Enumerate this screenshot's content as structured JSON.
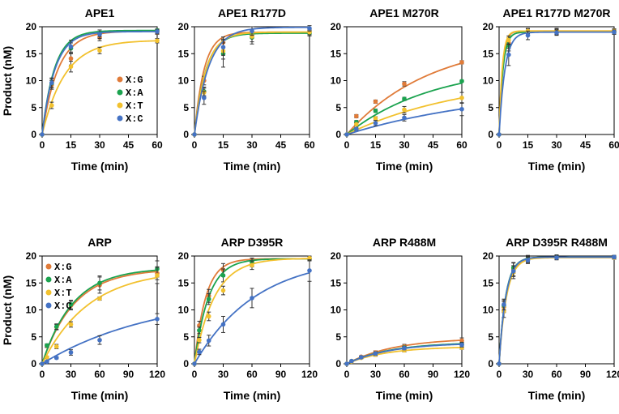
{
  "figure": {
    "y_axis_label": "Product (nM)",
    "colors": {
      "G": "#E07B39",
      "A": "#1BA34F",
      "T": "#F2C12E",
      "C": "#4472C4"
    }
  },
  "chart_data": [
    {
      "type": "line",
      "title": "APE1",
      "xlabel": "Time (min)",
      "ylabel": "Product (nM)",
      "xlim": [
        0,
        60
      ],
      "ylim": [
        0,
        20
      ],
      "xticks": [
        0,
        15,
        30,
        45,
        60
      ],
      "yticks": [
        0,
        5,
        10,
        15,
        20
      ],
      "legend": {
        "placement": "center-right",
        "entries": [
          "X:G",
          "X:A",
          "X:T",
          "X:C"
        ]
      },
      "series": [
        {
          "name": "X:G",
          "x": [
            0,
            5,
            15,
            30,
            60
          ],
          "y": [
            0,
            9.2,
            14.1,
            18.0,
            19.0
          ],
          "err": [
            0,
            0.8,
            1.2,
            0.6,
            0.4
          ],
          "fit": {
            "A": 19.2,
            "k": 0.12
          }
        },
        {
          "name": "X:A",
          "x": [
            0,
            5,
            15,
            30,
            60
          ],
          "y": [
            0,
            9.5,
            16.0,
            18.8,
            19.3
          ],
          "err": [
            0,
            0.8,
            1.0,
            0.6,
            0.3
          ],
          "fit": {
            "A": 19.3,
            "k": 0.155
          }
        },
        {
          "name": "X:T",
          "x": [
            0,
            5,
            15,
            30,
            60
          ],
          "y": [
            0,
            5.4,
            12.6,
            15.6,
            17.4
          ],
          "err": [
            0,
            0.6,
            1.0,
            0.6,
            0.4
          ],
          "fit": {
            "A": 17.5,
            "k": 0.085
          }
        },
        {
          "name": "X:C",
          "x": [
            0,
            5,
            15,
            30,
            60
          ],
          "y": [
            0,
            9.6,
            16.3,
            18.6,
            19.1
          ],
          "err": [
            0,
            0.9,
            1.2,
            0.8,
            0.4
          ],
          "fit": {
            "A": 19.1,
            "k": 0.15
          }
        }
      ]
    },
    {
      "type": "line",
      "title": "APE1 R177D",
      "xlabel": "",
      "ylabel": "",
      "xlim": [
        0,
        60
      ],
      "ylim": [
        0,
        20
      ],
      "xticks": [
        0,
        15,
        30,
        45,
        60
      ],
      "yticks": [
        0,
        5,
        10,
        15,
        20
      ],
      "series": [
        {
          "name": "X:G",
          "x": [
            0,
            5,
            15,
            30,
            60
          ],
          "y": [
            0,
            10.0,
            17.1,
            18.5,
            19.0
          ],
          "err": [
            0,
            0.8,
            1.0,
            0.6,
            0.4
          ],
          "fit": {
            "A": 19.0,
            "k": 0.2
          }
        },
        {
          "name": "X:A",
          "x": [
            0,
            5,
            15,
            30,
            60
          ],
          "y": [
            0,
            8.0,
            15.0,
            18.0,
            18.8
          ],
          "err": [
            0,
            0.8,
            2.5,
            1.2,
            0.5
          ],
          "fit": {
            "A": 18.8,
            "k": 0.17
          }
        },
        {
          "name": "X:T",
          "x": [
            0,
            5,
            15,
            30,
            60
          ],
          "y": [
            0,
            7.8,
            15.5,
            18.2,
            19.0
          ],
          "err": [
            0,
            0.8,
            1.5,
            1.0,
            0.5
          ],
          "fit": {
            "A": 19.0,
            "k": 0.165
          }
        },
        {
          "name": "X:C",
          "x": [
            0,
            5,
            15,
            30,
            60
          ],
          "y": [
            0,
            6.8,
            16.2,
            19.2,
            19.7
          ],
          "err": [
            0,
            1.2,
            1.5,
            0.8,
            0.5
          ],
          "fit": {
            "A": 19.9,
            "k": 0.135
          }
        }
      ]
    },
    {
      "type": "line",
      "title": "APE1 M270R",
      "xlabel": "Time (min)",
      "ylabel": "",
      "xlim": [
        0,
        60
      ],
      "ylim": [
        0,
        20
      ],
      "xticks": [
        0,
        15,
        30,
        45,
        60
      ],
      "yticks": [
        0,
        5,
        10,
        15,
        20
      ],
      "series": [
        {
          "name": "X:G",
          "x": [
            0,
            5,
            15,
            30,
            60
          ],
          "y": [
            0,
            3.4,
            6.1,
            9.4,
            13.4
          ],
          "err": [
            0,
            0.3,
            0.3,
            0.4,
            0.3
          ],
          "fit": {
            "A": 17.7,
            "k": 0.023
          }
        },
        {
          "name": "X:A",
          "x": [
            0,
            5,
            15,
            30,
            60
          ],
          "y": [
            0,
            2.3,
            4.4,
            6.6,
            9.9
          ],
          "err": [
            0,
            0.3,
            0.3,
            0.3,
            0.2
          ],
          "fit": {
            "A": 13.0,
            "k": 0.022
          }
        },
        {
          "name": "X:T",
          "x": [
            0,
            5,
            15,
            30,
            60
          ],
          "y": [
            0,
            1.9,
            3.0,
            4.6,
            6.8
          ],
          "err": [
            0,
            0.3,
            0.3,
            0.6,
            1.0
          ],
          "fit": {
            "A": 11.0,
            "k": 0.016
          }
        },
        {
          "name": "X:C",
          "x": [
            0,
            5,
            15,
            30,
            60
          ],
          "y": [
            0,
            1.0,
            2.1,
            3.1,
            4.7
          ],
          "err": [
            0,
            0.3,
            0.5,
            0.6,
            1.2
          ],
          "fit": {
            "A": 9.0,
            "k": 0.0125
          }
        }
      ]
    },
    {
      "type": "line",
      "title": "APE1 R177D M270R",
      "xlabel": "Time (min)",
      "ylabel": "",
      "xlim": [
        0,
        60
      ],
      "ylim": [
        0,
        20
      ],
      "xticks": [
        0,
        15,
        30,
        45,
        60
      ],
      "yticks": [
        0,
        5,
        10,
        15,
        20
      ],
      "series": [
        {
          "name": "X:G",
          "x": [
            0,
            5,
            15,
            30,
            60
          ],
          "y": [
            0,
            17.0,
            19.0,
            19.2,
            19.2
          ],
          "err": [
            0,
            1.0,
            0.6,
            0.5,
            0.4
          ],
          "fit": {
            "A": 19.2,
            "k": 0.58
          }
        },
        {
          "name": "X:A",
          "x": [
            0,
            5,
            15,
            30,
            60
          ],
          "y": [
            0,
            16.5,
            19.0,
            19.0,
            19.0
          ],
          "err": [
            0,
            1.0,
            0.6,
            0.5,
            0.4
          ],
          "fit": {
            "A": 19.0,
            "k": 0.5
          }
        },
        {
          "name": "X:T",
          "x": [
            0,
            5,
            15,
            30,
            60
          ],
          "y": [
            0,
            17.5,
            19.2,
            19.1,
            19.2
          ],
          "err": [
            0,
            0.8,
            0.5,
            0.5,
            0.4
          ],
          "fit": {
            "A": 19.2,
            "k": 0.62
          }
        },
        {
          "name": "X:C",
          "x": [
            0,
            5,
            15,
            30,
            60
          ],
          "y": [
            0,
            14.8,
            18.4,
            18.9,
            19.0
          ],
          "err": [
            0,
            2.0,
            0.8,
            0.5,
            0.4
          ],
          "fit": {
            "A": 19.0,
            "k": 0.33
          }
        }
      ]
    },
    {
      "type": "line",
      "title": "ARP",
      "xlabel": "Time (min)",
      "ylabel": "Product (nM)",
      "xlim": [
        0,
        120
      ],
      "ylim": [
        0,
        20
      ],
      "xticks": [
        0,
        30,
        60,
        90,
        120
      ],
      "yticks": [
        0,
        5,
        10,
        15,
        20
      ],
      "legend": {
        "placement": "top-left",
        "entries": [
          "X:G",
          "X:A",
          "X:T",
          "X:C"
        ]
      },
      "series": [
        {
          "name": "X:G",
          "x": [
            0,
            5,
            15,
            30,
            60,
            120
          ],
          "y": [
            0,
            3.3,
            6.8,
            10.8,
            14.6,
            16.8
          ],
          "err": [
            0,
            0.3,
            0.5,
            0.8,
            1.5,
            1.2
          ],
          "fit": {
            "A": 17.6,
            "k": 0.03
          }
        },
        {
          "name": "X:A",
          "x": [
            0,
            5,
            15,
            30,
            60,
            120
          ],
          "y": [
            0,
            3.4,
            6.9,
            11.0,
            15.0,
            17.6
          ],
          "err": [
            0,
            0.3,
            0.5,
            0.8,
            1.3,
            1.5
          ],
          "fit": {
            "A": 17.8,
            "k": 0.031
          }
        },
        {
          "name": "X:T",
          "x": [
            0,
            5,
            15,
            30,
            60,
            120
          ],
          "y": [
            0,
            1.2,
            3.2,
            7.3,
            12.1,
            16.4
          ],
          "err": [
            0,
            0.2,
            0.4,
            0.5,
            0.3,
            1.5
          ],
          "fit": {
            "A": 17.5,
            "k": 0.0205
          }
        },
        {
          "name": "X:C",
          "x": [
            0,
            5,
            15,
            30,
            60,
            120
          ],
          "y": [
            0,
            0.4,
            1.1,
            2.1,
            4.4,
            8.3
          ],
          "err": [
            0,
            0.2,
            0.2,
            0.5,
            0.8,
            1.0
          ],
          "fit": {
            "A": 13.0,
            "k": 0.0085
          }
        }
      ]
    },
    {
      "type": "line",
      "title": "ARP D395R",
      "xlabel": "Time (min)",
      "ylabel": "",
      "xlim": [
        0,
        120
      ],
      "ylim": [
        0,
        20
      ],
      "xticks": [
        0,
        30,
        60,
        90,
        120
      ],
      "yticks": [
        0,
        5,
        10,
        15,
        20
      ],
      "series": [
        {
          "name": "X:G",
          "x": [
            0,
            5,
            15,
            30,
            60,
            120
          ],
          "y": [
            0,
            7.1,
            12.6,
            17.4,
            19.0,
            19.5
          ],
          "err": [
            0,
            0.8,
            1.2,
            1.2,
            0.6,
            0.4
          ],
          "fit": {
            "A": 19.5,
            "k": 0.085
          }
        },
        {
          "name": "X:A",
          "x": [
            0,
            5,
            15,
            30,
            60,
            120
          ],
          "y": [
            0,
            6.2,
            12.0,
            16.4,
            18.8,
            19.5
          ],
          "err": [
            0,
            0.6,
            1.0,
            1.2,
            0.8,
            0.4
          ],
          "fit": {
            "A": 19.5,
            "k": 0.068
          }
        },
        {
          "name": "X:T",
          "x": [
            0,
            5,
            15,
            30,
            60,
            120
          ],
          "y": [
            0,
            4.4,
            8.8,
            13.6,
            18.3,
            19.6
          ],
          "err": [
            0,
            0.5,
            0.8,
            0.8,
            0.8,
            0.4
          ],
          "fit": {
            "A": 19.6,
            "k": 0.048
          }
        },
        {
          "name": "X:C",
          "x": [
            0,
            5,
            15,
            30,
            60,
            120
          ],
          "y": [
            0,
            2.2,
            4.3,
            7.3,
            12.2,
            17.3
          ],
          "err": [
            0,
            0.5,
            1.0,
            1.5,
            1.8,
            2.0
          ],
          "fit": {
            "A": 20.0,
            "k": 0.0155
          }
        }
      ]
    },
    {
      "type": "line",
      "title": "ARP R488M",
      "xlabel": "Time (min)",
      "ylabel": "",
      "xlim": [
        0,
        120
      ],
      "ylim": [
        0,
        20
      ],
      "xticks": [
        0,
        30,
        60,
        90,
        120
      ],
      "yticks": [
        0,
        5,
        10,
        15,
        20
      ],
      "series": [
        {
          "name": "X:G",
          "x": [
            0,
            5,
            15,
            30,
            60,
            120
          ],
          "y": [
            0,
            0.5,
            1.3,
            2.1,
            3.2,
            4.3
          ],
          "err": [
            0,
            0.1,
            0.2,
            0.3,
            0.4,
            0.5
          ],
          "fit": {
            "A": 4.8,
            "k": 0.02
          }
        },
        {
          "name": "X:A",
          "x": [
            0,
            5,
            15,
            30,
            60,
            120
          ],
          "y": [
            0,
            0.5,
            1.2,
            1.9,
            3.0,
            3.6
          ],
          "err": [
            0,
            0.1,
            0.2,
            0.3,
            0.3,
            0.4
          ],
          "fit": {
            "A": 4.0,
            "k": 0.022
          }
        },
        {
          "name": "X:T",
          "x": [
            0,
            5,
            15,
            30,
            60,
            120
          ],
          "y": [
            0,
            0.4,
            1.1,
            1.7,
            2.5,
            3.0
          ],
          "err": [
            0,
            0.1,
            0.2,
            0.3,
            0.3,
            0.3
          ],
          "fit": {
            "A": 3.2,
            "k": 0.024
          }
        },
        {
          "name": "X:C",
          "x": [
            0,
            5,
            15,
            30,
            60,
            120
          ],
          "y": [
            0,
            0.5,
            1.2,
            1.9,
            2.9,
            3.5
          ],
          "err": [
            0,
            0.1,
            0.2,
            0.3,
            0.3,
            0.4
          ],
          "fit": {
            "A": 3.9,
            "k": 0.022
          }
        }
      ]
    },
    {
      "type": "line",
      "title": "ARP D395R R488M",
      "xlabel": "Time (min)",
      "ylabel": "",
      "xlim": [
        0,
        120
      ],
      "ylim": [
        0,
        20
      ],
      "xticks": [
        0,
        30,
        60,
        90,
        120
      ],
      "yticks": [
        0,
        5,
        10,
        15,
        20
      ],
      "series": [
        {
          "name": "X:G",
          "x": [
            0,
            5,
            15,
            30,
            60,
            120
          ],
          "y": [
            0,
            10.5,
            17.5,
            19.5,
            19.8,
            19.8
          ],
          "err": [
            0,
            1.0,
            1.2,
            0.6,
            0.4,
            0.3
          ],
          "fit": {
            "A": 19.8,
            "k": 0.14
          }
        },
        {
          "name": "X:A",
          "x": [
            0,
            5,
            15,
            30,
            60,
            120
          ],
          "y": [
            0,
            10.8,
            17.8,
            19.5,
            19.8,
            19.8
          ],
          "err": [
            0,
            1.0,
            1.0,
            0.6,
            0.4,
            0.3
          ],
          "fit": {
            "A": 19.8,
            "k": 0.145
          }
        },
        {
          "name": "X:T",
          "x": [
            0,
            5,
            15,
            30,
            60,
            120
          ],
          "y": [
            0,
            9.8,
            17.0,
            19.3,
            19.7,
            19.7
          ],
          "err": [
            0,
            1.2,
            1.2,
            0.6,
            0.4,
            0.3
          ],
          "fit": {
            "A": 19.7,
            "k": 0.13
          }
        },
        {
          "name": "X:C",
          "x": [
            0,
            5,
            15,
            30,
            60,
            120
          ],
          "y": [
            0,
            11.0,
            17.2,
            19.2,
            19.7,
            19.8
          ],
          "err": [
            0,
            1.0,
            1.0,
            0.6,
            0.4,
            0.3
          ],
          "fit": {
            "A": 19.8,
            "k": 0.142
          }
        }
      ]
    }
  ]
}
